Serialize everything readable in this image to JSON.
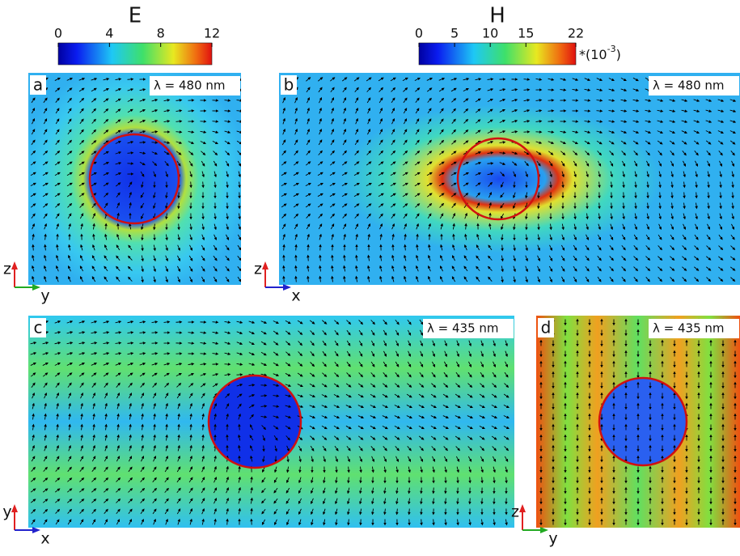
{
  "colorbars": [
    {
      "title": "E",
      "lim": [
        0,
        12
      ],
      "ticks": [
        0,
        4,
        8,
        12
      ]
    },
    {
      "title": "H",
      "lim": [
        0,
        22
      ],
      "ticks": [
        0,
        5,
        10,
        15,
        22
      ],
      "scale_label": {
        "prefix": "*(10",
        "exponent": "-3",
        "suffix": ")"
      }
    }
  ],
  "panels": [
    {
      "letter": "a",
      "wavelength": "λ = 480 nm",
      "vertical_axis": "z",
      "horizontal_axis": "y"
    },
    {
      "letter": "b",
      "wavelength": "λ = 480 nm",
      "vertical_axis": "z",
      "horizontal_axis": "x"
    },
    {
      "letter": "c",
      "wavelength": "λ = 435 nm",
      "vertical_axis": "y",
      "horizontal_axis": "x"
    },
    {
      "letter": "d",
      "wavelength": "λ = 435 nm",
      "vertical_axis": "z",
      "horizontal_axis": "y"
    }
  ]
}
